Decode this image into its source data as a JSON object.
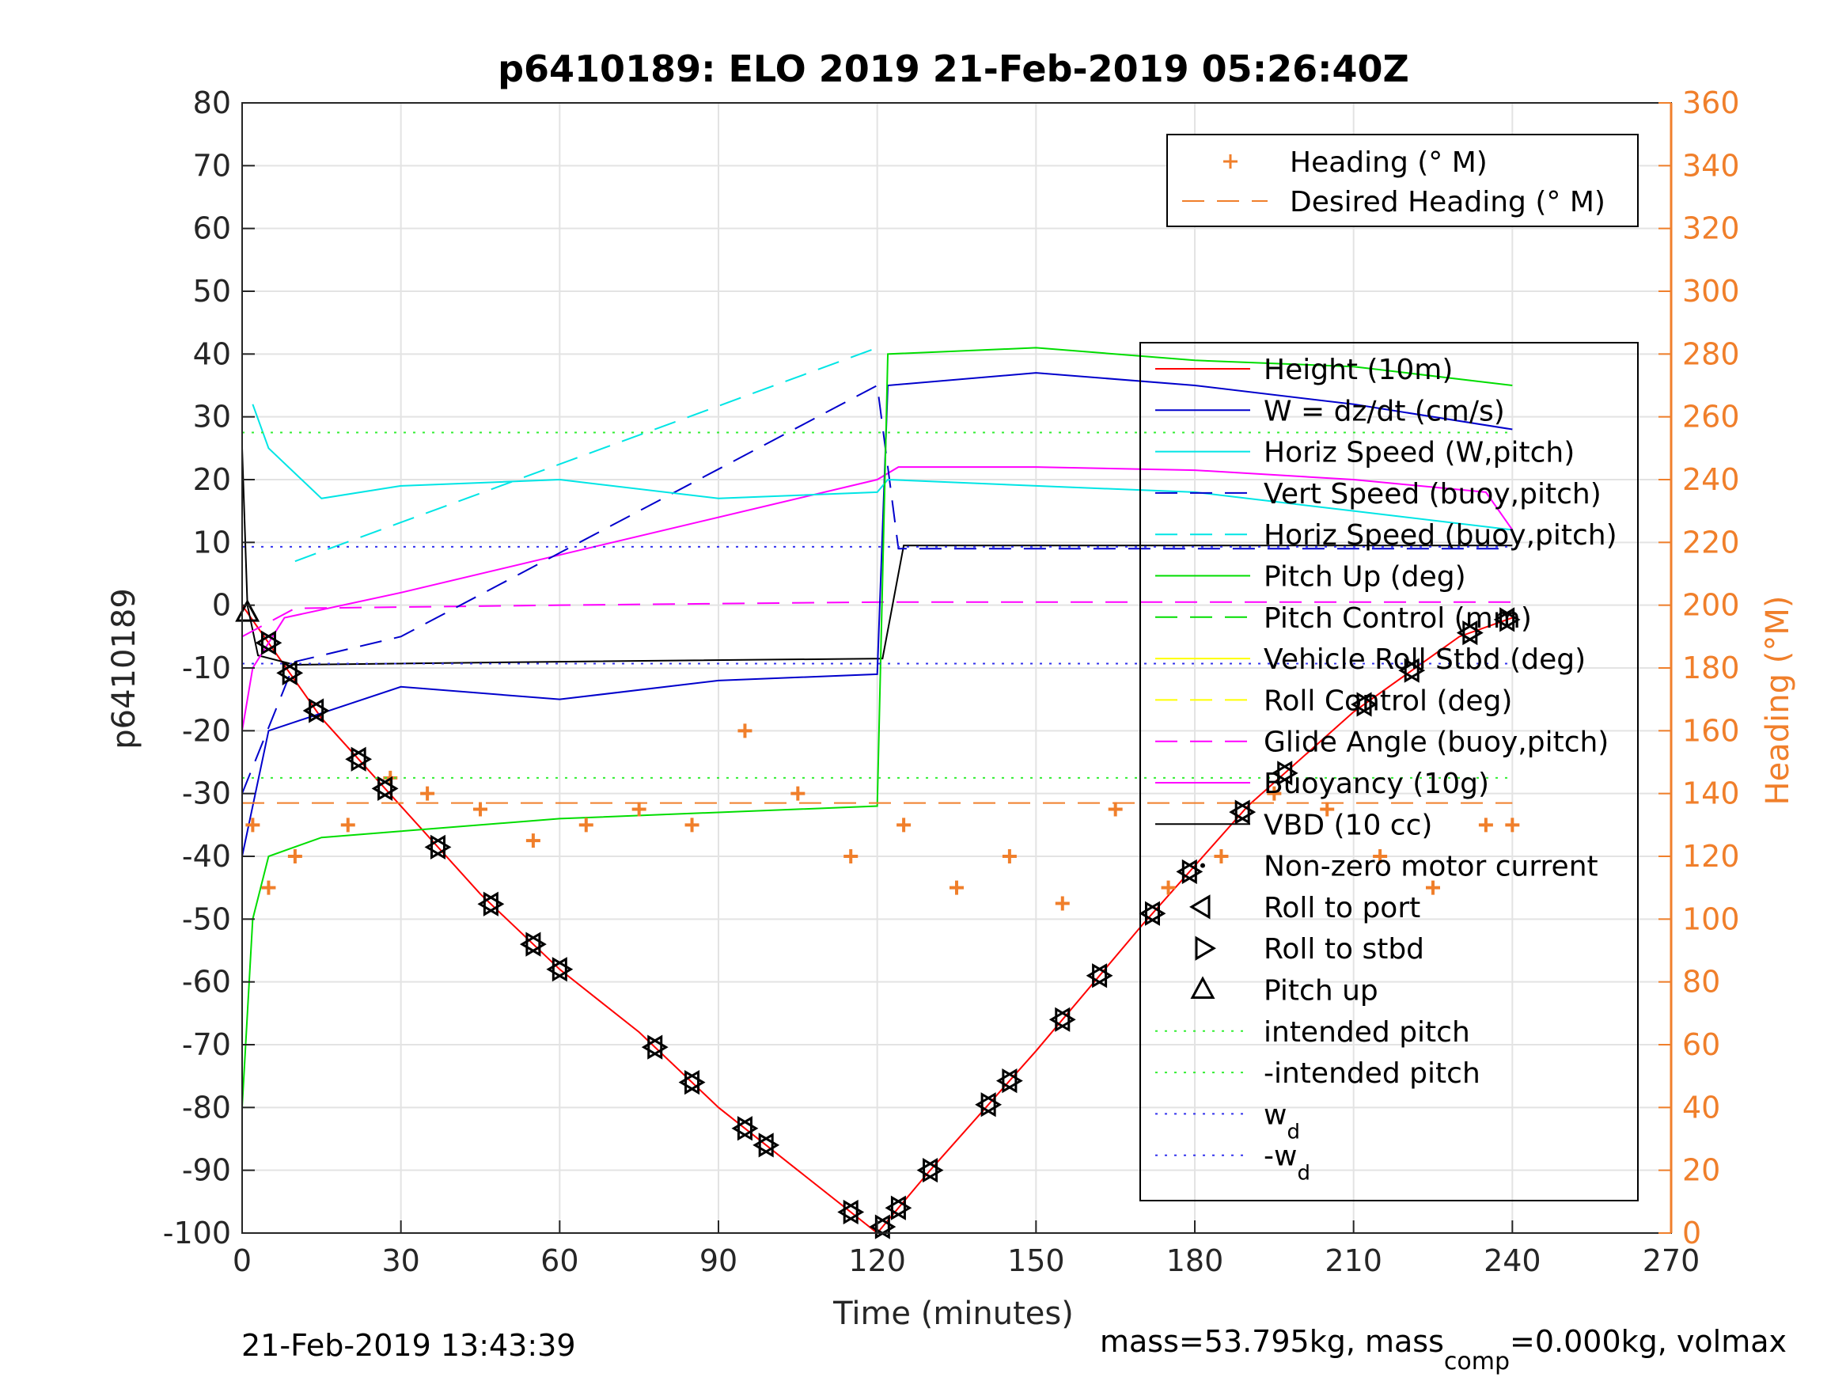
{
  "chart_data": {
    "type": "line",
    "title": "p6410189: ELO 2019 21-Feb-2019 05:26:40Z",
    "xlabel": "Time (minutes)",
    "ylabel": "p6410189",
    "y2label": "Heading (°M)",
    "xlim": [
      0,
      270
    ],
    "ylim": [
      -100,
      80
    ],
    "y2lim": [
      0,
      360
    ],
    "xticks": [
      "0",
      "30",
      "60",
      "90",
      "120",
      "150",
      "180",
      "210",
      "240",
      "270"
    ],
    "yticks": [
      "80",
      "70",
      "60",
      "50",
      "40",
      "30",
      "20",
      "10",
      "0",
      "-10",
      "-20",
      "-30",
      "-40",
      "-50",
      "-60",
      "-70",
      "-80",
      "-90",
      "-100"
    ],
    "y2ticks": [
      "360",
      "340",
      "320",
      "300",
      "280",
      "260",
      "240",
      "220",
      "200",
      "180",
      "160",
      "140",
      "120",
      "100",
      "80",
      "60",
      "40",
      "20",
      "0"
    ],
    "grid": true,
    "legend_right": [
      {
        "name": "Heading (° M)",
        "color": "#F07F2B",
        "style": "plus"
      },
      {
        "name": "Desired Heading (° M)",
        "color": "#F07F2B",
        "style": "dash"
      }
    ],
    "legend_left": [
      {
        "name": "Height (10m)",
        "color": "#FF0000",
        "style": "solid"
      },
      {
        "name": "W = dz/dt (cm/s)",
        "color": "#0000CC",
        "style": "solid"
      },
      {
        "name": "Horiz Speed (W,pitch)",
        "color": "#00E5E5",
        "style": "solid"
      },
      {
        "name": "Vert Speed (buoy,pitch)",
        "color": "#0000CC",
        "style": "dash"
      },
      {
        "name": "Horiz Speed (buoy,pitch)",
        "color": "#00E5E5",
        "style": "dash"
      },
      {
        "name": "Pitch Up (deg)",
        "color": "#00DD00",
        "style": "solid"
      },
      {
        "name": "Pitch Control (mm)",
        "color": "#00DD00",
        "style": "dash"
      },
      {
        "name": "Vehicle Roll Stbd (deg)",
        "color": "#FFFF00",
        "style": "solid"
      },
      {
        "name": "Roll Control (deg)",
        "color": "#FFFF00",
        "style": "dash"
      },
      {
        "name": "Glide Angle (buoy,pitch)",
        "color": "#FF00FF",
        "style": "dash"
      },
      {
        "name": "Buoyancy (10g)",
        "color": "#FF00FF",
        "style": "solid"
      },
      {
        "name": "VBD (10 cc)",
        "color": "#000000",
        "style": "solid"
      },
      {
        "name": "Non-zero motor current",
        "color": "#000000",
        "style": "dot"
      },
      {
        "name": "Roll to port",
        "color": "#000000",
        "style": "tri-left"
      },
      {
        "name": "Roll to stbd",
        "color": "#000000",
        "style": "tri-right"
      },
      {
        "name": "Pitch up",
        "color": "#000000",
        "style": "tri-up"
      },
      {
        "name": "intended pitch",
        "color": "#33EE33",
        "style": "dotted"
      },
      {
        "name": "-intended pitch",
        "color": "#33EE33",
        "style": "dotted"
      },
      {
        "name": "w",
        "sub": "d",
        "color": "#3333EE",
        "style": "dotted"
      },
      {
        "name": "-w",
        "sub": "d",
        "color": "#3333EE",
        "style": "dotted"
      }
    ],
    "series": [
      {
        "name": "Height (10m)",
        "x": [
          0,
          15,
          30,
          45,
          60,
          75,
          90,
          105,
          120,
          130,
          150,
          170,
          190,
          210,
          230,
          240
        ],
        "y": [
          0,
          -18,
          -32,
          -46,
          -58,
          -68,
          -80,
          -90,
          -100,
          -90,
          -71,
          -51,
          -32,
          -17,
          -5,
          -2
        ]
      },
      {
        "name": "VBD (10 cc)",
        "x": [
          0,
          1,
          3,
          10,
          60,
          121,
          125,
          240
        ],
        "y": [
          25,
          0,
          -8,
          -9.5,
          -9,
          -8.5,
          9.5,
          9.5
        ]
      },
      {
        "name": "Buoyancy (10g)",
        "x": [
          0,
          2,
          8,
          30,
          60,
          120,
          124,
          150,
          180,
          210,
          235,
          240
        ],
        "y": [
          -20,
          -10,
          -2,
          2,
          8,
          20,
          22,
          22,
          21.5,
          20,
          18,
          12
        ]
      },
      {
        "name": "Glide Angle (buoy,pitch)",
        "x": [
          0,
          10,
          60,
          121,
          125,
          240
        ],
        "y": [
          -5,
          -0.5,
          0,
          0.5,
          0.5,
          0.5
        ]
      },
      {
        "name": "Vert Speed (buoy,pitch)",
        "x": [
          0,
          10,
          30,
          120,
          124,
          240
        ],
        "y": [
          -30,
          -9,
          -5,
          35,
          9,
          9
        ]
      },
      {
        "name": "Horiz Speed (buoy,pitch)",
        "x": [
          10,
          120
        ],
        "y": [
          7,
          41
        ]
      },
      {
        "name": "W = dz/dt (cm/s)",
        "x": [
          0,
          5,
          30,
          60,
          90,
          120,
          122,
          150,
          180,
          210,
          240
        ],
        "y": [
          -40,
          -20,
          -13,
          -15,
          -12,
          -11,
          35,
          37,
          35,
          32,
          28
        ]
      },
      {
        "name": "Horiz Speed (W,pitch)",
        "x": [
          2,
          5,
          15,
          30,
          60,
          90,
          120,
          122,
          150,
          180,
          210,
          240
        ],
        "y": [
          32,
          25,
          17,
          19,
          20,
          17,
          18,
          20,
          19,
          18,
          15,
          12
        ]
      },
      {
        "name": "Pitch Up (deg)",
        "x": [
          0,
          2,
          5,
          15,
          30,
          60,
          90,
          120,
          122,
          150,
          180,
          210,
          240
        ],
        "y": [
          -80,
          -50,
          -40,
          -37,
          -36,
          -34,
          -33,
          -32,
          40,
          41,
          39,
          38,
          35
        ]
      },
      {
        "name": "Heading (° M)",
        "x": [
          2,
          5,
          10,
          20,
          28,
          35,
          45,
          55,
          65,
          75,
          85,
          95,
          105,
          115,
          125,
          135,
          145,
          155,
          165,
          175,
          185,
          195,
          205,
          215,
          225,
          235,
          240
        ],
        "y": [
          130,
          110,
          120,
          130,
          145,
          140,
          135,
          125,
          130,
          135,
          130,
          160,
          140,
          120,
          130,
          110,
          120,
          105,
          135,
          110,
          120,
          140,
          135,
          120,
          110,
          130,
          130
        ]
      },
      {
        "name": "Desired Heading (° M)",
        "x": [
          0,
          240
        ],
        "y": [
          137,
          137
        ]
      },
      {
        "name": "intended pitch",
        "x": [
          0,
          240
        ],
        "y": [
          27.5,
          27.5
        ]
      },
      {
        "name": "-intended pitch",
        "x": [
          0,
          240
        ],
        "y": [
          -27.5,
          -27.5
        ]
      },
      {
        "name": "wd",
        "x": [
          0,
          240
        ],
        "y": [
          9.3,
          9.3
        ]
      },
      {
        "name": "-wd",
        "x": [
          0,
          240
        ],
        "y": [
          -9.3,
          -9.3
        ]
      }
    ],
    "markers": {
      "roll_to_port_x": [
        5,
        9,
        14,
        22,
        27,
        37,
        47,
        55,
        60,
        78,
        85,
        95,
        99,
        115,
        121,
        124,
        130,
        141,
        145,
        155,
        162,
        172,
        179,
        189,
        197,
        212,
        221,
        232,
        239
      ],
      "pitch_up_x": [
        1
      ]
    }
  },
  "footer": {
    "timestamp": "21-Feb-2019 13:43:39",
    "mass_text_a": "mass=53.795kg, mass",
    "mass_sub": "comp",
    "mass_text_b": "=0.000kg, volmax"
  }
}
